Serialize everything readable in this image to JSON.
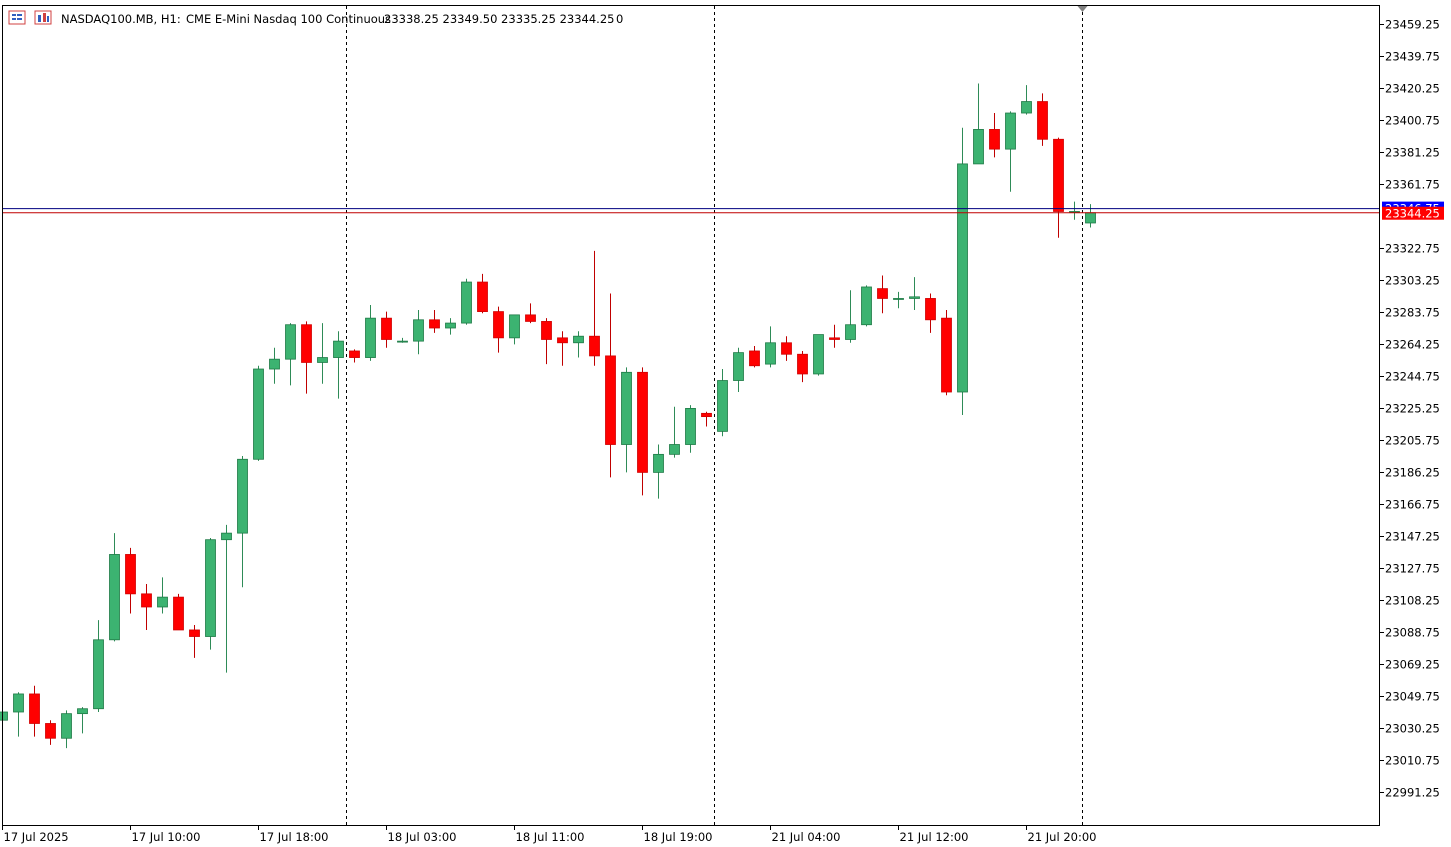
{
  "header": {
    "symbol": "NASDAQ100.MB, H1:",
    "description": "CME E-Mini Nasdaq 100 Continuous",
    "ohlc": "23338.25 23349.50 23335.25 23344.25",
    "volume": "0",
    "icons": [
      "menu-icon",
      "chart-type-icon"
    ]
  },
  "price_tags": {
    "bid": {
      "label": "23344.25",
      "color": "#ff0000"
    },
    "ask": {
      "label": "23346.75",
      "color": "#0000ff"
    }
  },
  "colors": {
    "bull": "#3cb371",
    "bear": "#ff0000",
    "wick": "#2e8b57",
    "grid_sep": "#000000"
  },
  "chart_data": {
    "type": "candlestick",
    "timeframe": "H1",
    "y_range": [
      22975,
      23475
    ],
    "y_ticks": [
      "23459.25",
      "23439.75",
      "23420.25",
      "23400.75",
      "23381.25",
      "23361.75",
      "23322.75",
      "23303.25",
      "23283.75",
      "23264.25",
      "23244.75",
      "23225.25",
      "23205.75",
      "23186.25",
      "23166.75",
      "23147.25",
      "23127.75",
      "23108.25",
      "23088.75",
      "23069.25",
      "23049.75",
      "23030.25",
      "23010.75",
      "22991.25"
    ],
    "x_labels": [
      {
        "i": 0,
        "label": "17 Jul 2025"
      },
      {
        "i": 8,
        "label": "17 Jul 10:00"
      },
      {
        "i": 16,
        "label": "17 Jul 18:00"
      },
      {
        "i": 24,
        "label": "18 Jul 03:00"
      },
      {
        "i": 32,
        "label": "18 Jul 11:00"
      },
      {
        "i": 40,
        "label": "18 Jul 19:00"
      },
      {
        "i": 48,
        "label": "21 Jul 04:00"
      },
      {
        "i": 56,
        "label": "21 Jul 12:00"
      },
      {
        "i": 64,
        "label": "21 Jul 20:00"
      }
    ],
    "day_separators": [
      21.5,
      44.5,
      67.5
    ],
    "candles": [
      {
        "o": 23035,
        "h": 23041,
        "l": 23032,
        "c": 23040
      },
      {
        "o": 23040,
        "h": 23052,
        "l": 23025,
        "c": 23051
      },
      {
        "o": 23051,
        "h": 23056,
        "l": 23025,
        "c": 23033
      },
      {
        "o": 23033,
        "h": 23035,
        "l": 23020,
        "c": 23024
      },
      {
        "o": 23024,
        "h": 23041,
        "l": 23018,
        "c": 23039
      },
      {
        "o": 23039,
        "h": 23043,
        "l": 23027,
        "c": 23042
      },
      {
        "o": 23042,
        "h": 23096,
        "l": 23040,
        "c": 23084
      },
      {
        "o": 23084,
        "h": 23149,
        "l": 23083,
        "c": 23136
      },
      {
        "o": 23136,
        "h": 23140,
        "l": 23100,
        "c": 23112
      },
      {
        "o": 23112,
        "h": 23118,
        "l": 23090,
        "c": 23104
      },
      {
        "o": 23104,
        "h": 23122,
        "l": 23100,
        "c": 23110
      },
      {
        "o": 23110,
        "h": 23112,
        "l": 23090,
        "c": 23090
      },
      {
        "o": 23090,
        "h": 23093,
        "l": 23073,
        "c": 23086
      },
      {
        "o": 23086,
        "h": 23146,
        "l": 23078,
        "c": 23145
      },
      {
        "o": 23145,
        "h": 23154,
        "l": 23064,
        "c": 23149
      },
      {
        "o": 23149,
        "h": 23196,
        "l": 23116,
        "c": 23194
      },
      {
        "o": 23194,
        "h": 23251,
        "l": 23193,
        "c": 23249
      },
      {
        "o": 23249,
        "h": 23262,
        "l": 23240,
        "c": 23255
      },
      {
        "o": 23255,
        "h": 23277,
        "l": 23239,
        "c": 23276
      },
      {
        "o": 23276,
        "h": 23278,
        "l": 23234,
        "c": 23253
      },
      {
        "o": 23253,
        "h": 23277,
        "l": 23240,
        "c": 23256
      },
      {
        "o": 23256,
        "h": 23272,
        "l": 23231,
        "c": 23266
      },
      {
        "o": 23260,
        "h": 23261,
        "l": 23253,
        "c": 23256
      },
      {
        "o": 23256,
        "h": 23288,
        "l": 23254,
        "c": 23280
      },
      {
        "o": 23280,
        "h": 23284,
        "l": 23262,
        "c": 23267
      },
      {
        "o": 23266,
        "h": 23268,
        "l": 23265,
        "c": 23266
      },
      {
        "o": 23266,
        "h": 23285,
        "l": 23258,
        "c": 23279
      },
      {
        "o": 23279,
        "h": 23285,
        "l": 23271,
        "c": 23274
      },
      {
        "o": 23274,
        "h": 23280,
        "l": 23270,
        "c": 23277
      },
      {
        "o": 23277,
        "h": 23304,
        "l": 23276,
        "c": 23302
      },
      {
        "o": 23302,
        "h": 23307,
        "l": 23283,
        "c": 23284
      },
      {
        "o": 23284,
        "h": 23287,
        "l": 23259,
        "c": 23268
      },
      {
        "o": 23268,
        "h": 23282,
        "l": 23264,
        "c": 23282
      },
      {
        "o": 23282,
        "h": 23289,
        "l": 23277,
        "c": 23278
      },
      {
        "o": 23278,
        "h": 23280,
        "l": 23252,
        "c": 23267
      },
      {
        "o": 23268,
        "h": 23272,
        "l": 23251,
        "c": 23265
      },
      {
        "o": 23265,
        "h": 23272,
        "l": 23256,
        "c": 23269
      },
      {
        "o": 23269,
        "h": 23321,
        "l": 23251,
        "c": 23257
      },
      {
        "o": 23257,
        "h": 23295,
        "l": 23183,
        "c": 23203
      },
      {
        "o": 23203,
        "h": 23250,
        "l": 23186,
        "c": 23247
      },
      {
        "o": 23247,
        "h": 23250,
        "l": 23172,
        "c": 23186
      },
      {
        "o": 23186,
        "h": 23203,
        "l": 23170,
        "c": 23197
      },
      {
        "o": 23197,
        "h": 23226,
        "l": 23195,
        "c": 23203
      },
      {
        "o": 23203,
        "h": 23227,
        "l": 23198,
        "c": 23225
      },
      {
        "o": 23222,
        "h": 23223,
        "l": 23214,
        "c": 23220
      },
      {
        "o": 23211,
        "h": 23249,
        "l": 23208,
        "c": 23242
      },
      {
        "o": 23242,
        "h": 23262,
        "l": 23235,
        "c": 23259
      },
      {
        "o": 23260,
        "h": 23263,
        "l": 23250,
        "c": 23251
      },
      {
        "o": 23252,
        "h": 23275,
        "l": 23250,
        "c": 23265
      },
      {
        "o": 23265,
        "h": 23269,
        "l": 23254,
        "c": 23258
      },
      {
        "o": 23258,
        "h": 23260,
        "l": 23241,
        "c": 23246
      },
      {
        "o": 23246,
        "h": 23270,
        "l": 23245,
        "c": 23270
      },
      {
        "o": 23268,
        "h": 23276,
        "l": 23262,
        "c": 23267
      },
      {
        "o": 23267,
        "h": 23297,
        "l": 23265,
        "c": 23276
      },
      {
        "o": 23276,
        "h": 23300,
        "l": 23275,
        "c": 23299
      },
      {
        "o": 23298,
        "h": 23306,
        "l": 23283,
        "c": 23292
      },
      {
        "o": 23292,
        "h": 23296,
        "l": 23286,
        "c": 23292
      },
      {
        "o": 23292,
        "h": 23305,
        "l": 23285,
        "c": 23293
      },
      {
        "o": 23292,
        "h": 23295,
        "l": 23271,
        "c": 23279
      },
      {
        "o": 23280,
        "h": 23285,
        "l": 23233,
        "c": 23235
      },
      {
        "o": 23235,
        "h": 23396,
        "l": 23221,
        "c": 23374
      },
      {
        "o": 23374,
        "h": 23423,
        "l": 23374,
        "c": 23395
      },
      {
        "o": 23395,
        "h": 23405,
        "l": 23378,
        "c": 23383
      },
      {
        "o": 23383,
        "h": 23406,
        "l": 23357,
        "c": 23405
      },
      {
        "o": 23405,
        "h": 23422,
        "l": 23404,
        "c": 23412
      },
      {
        "o": 23412,
        "h": 23417,
        "l": 23385,
        "c": 23389
      },
      {
        "o": 23389,
        "h": 23390,
        "l": 23329,
        "c": 23345
      },
      {
        "o": 23345,
        "h": 23351,
        "l": 23340,
        "c": 23345
      },
      {
        "o": 23338,
        "h": 23349.5,
        "l": 23335.25,
        "c": 23344.25
      }
    ]
  }
}
